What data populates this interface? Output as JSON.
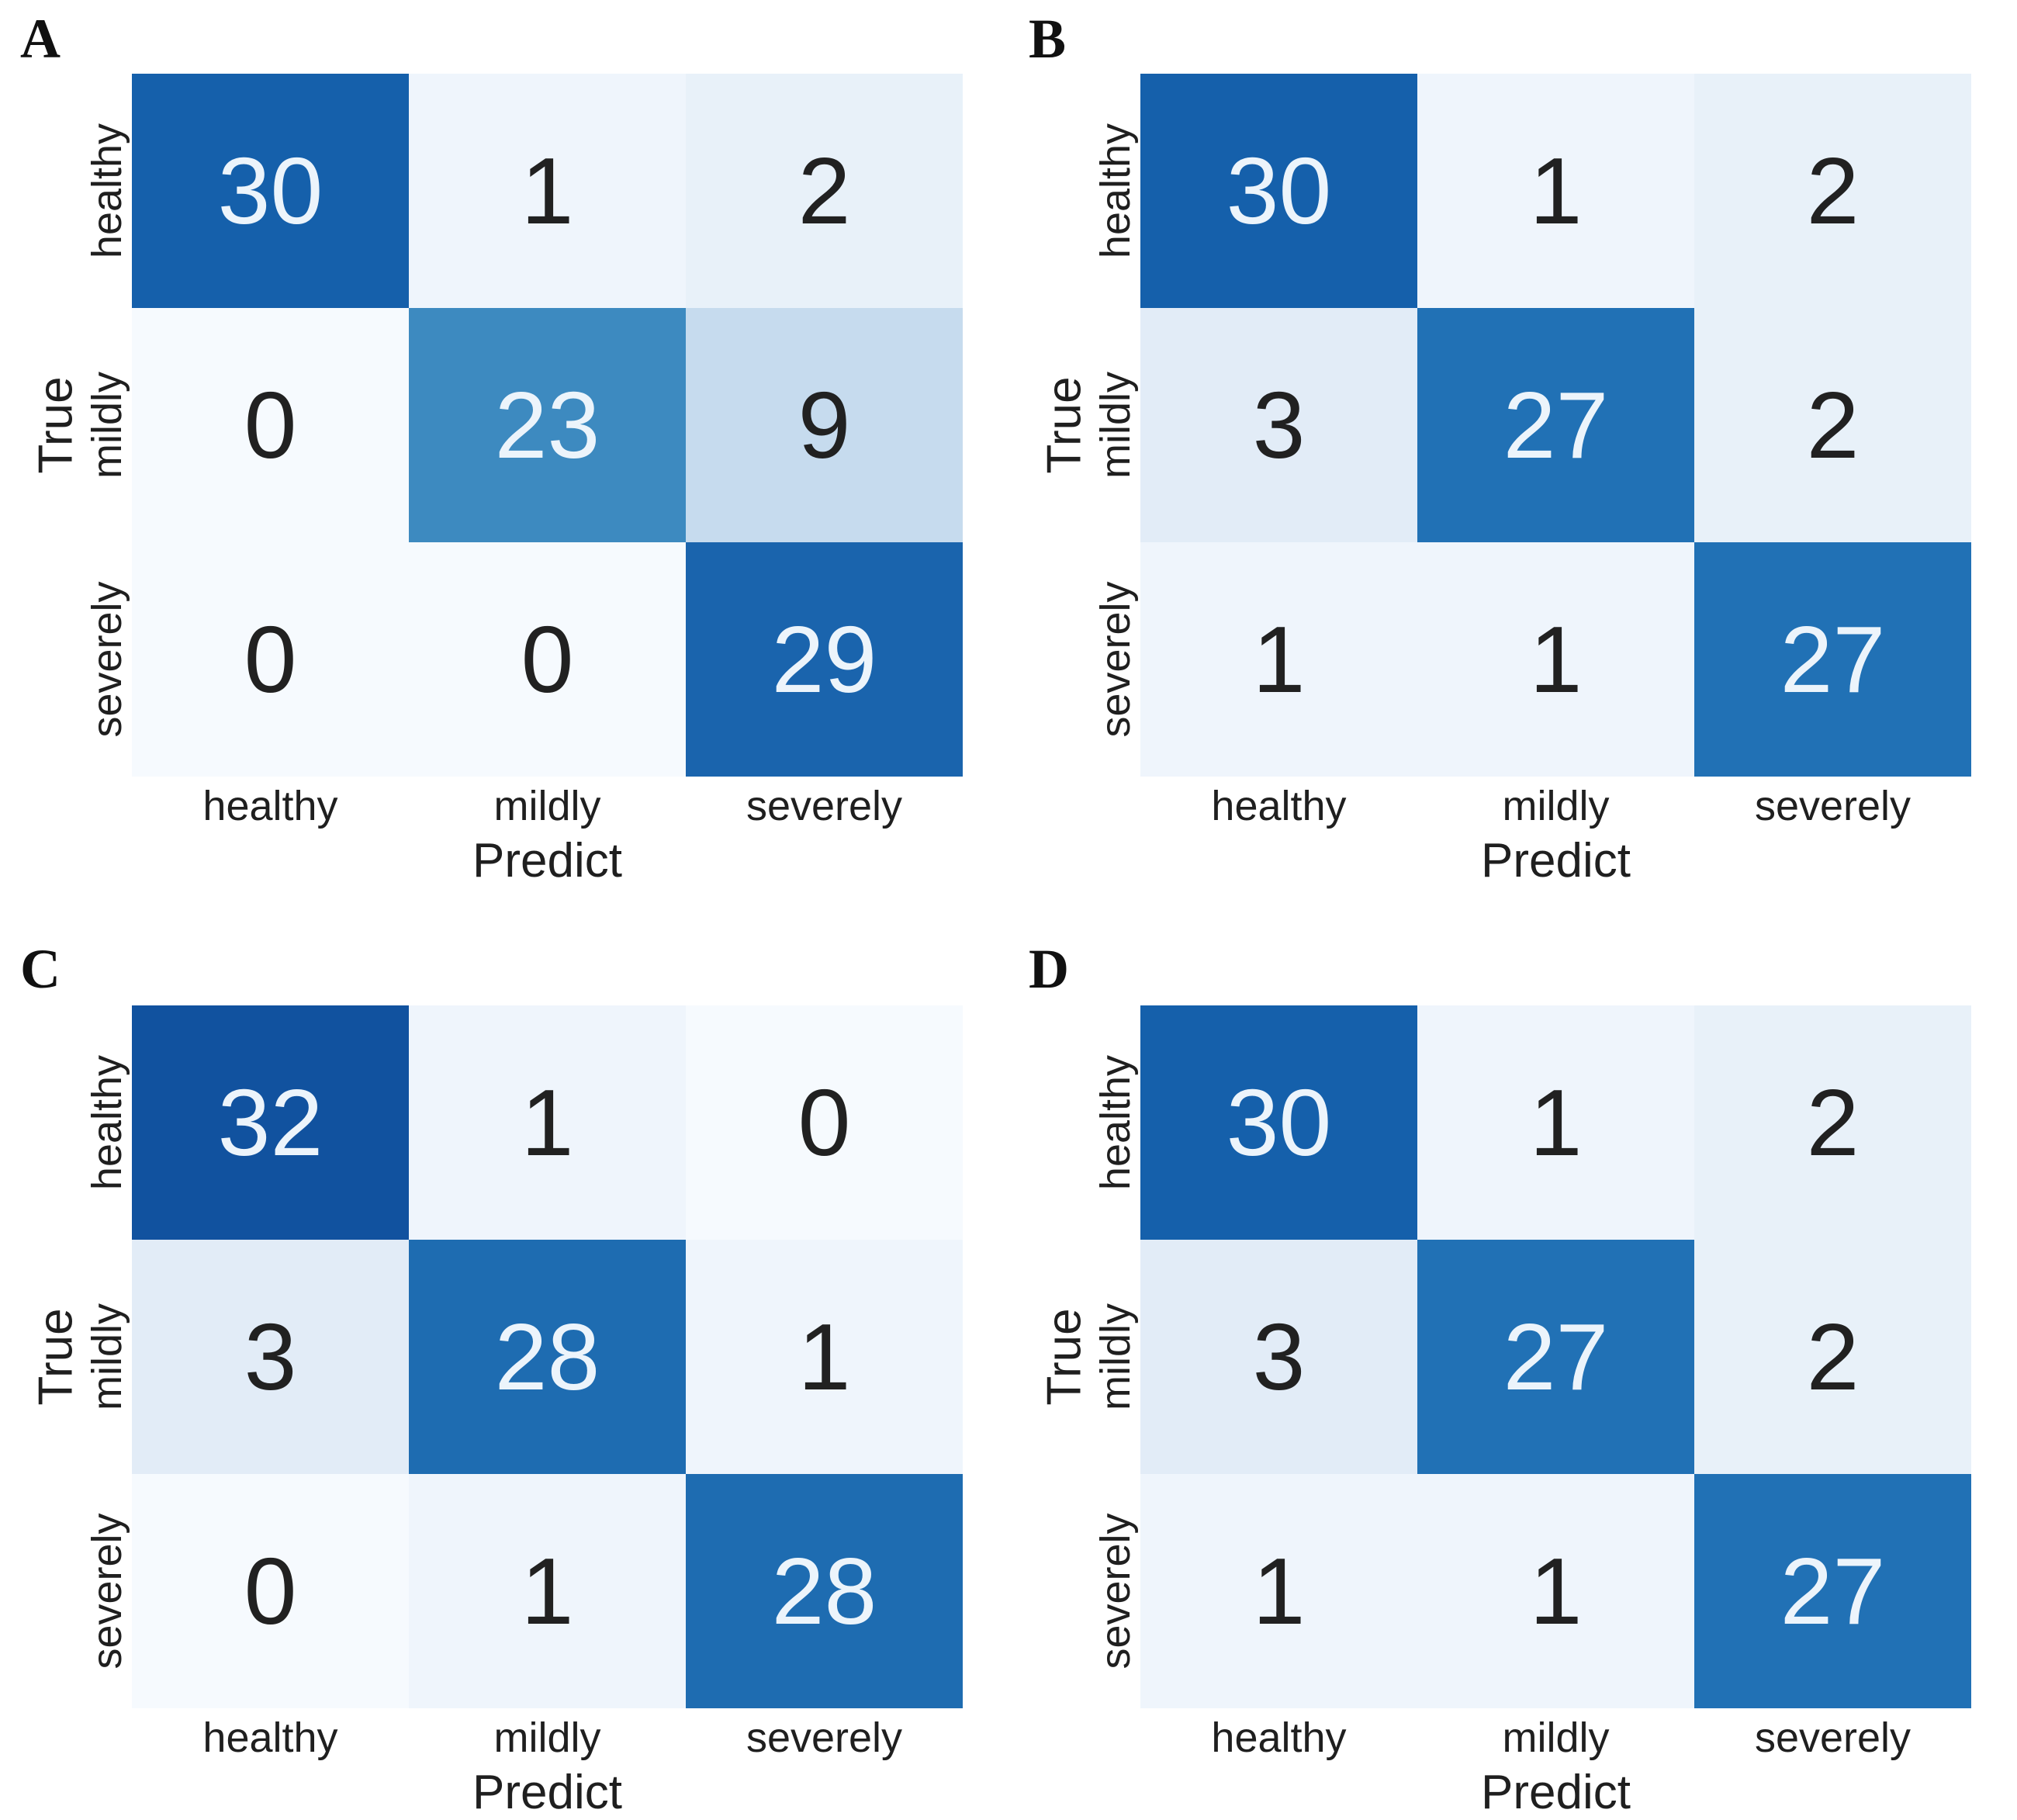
{
  "figure": {
    "background": "#ffffff",
    "x_axis": {
      "label": "Predict",
      "ticks": [
        "healthy",
        "mildly",
        "severely"
      ]
    },
    "y_axis": {
      "label": "True",
      "ticks": [
        "healthy",
        "mildly",
        "severely"
      ]
    },
    "colormap": {
      "name": "Blues",
      "value_colors": {
        "0": "#f6fafe",
        "1": "#eff5fc",
        "2": "#e8f1f9",
        "3": "#e2ecf7",
        "9": "#c6dbee",
        "23": "#3d8ac0",
        "27": "#2171b5",
        "28": "#1e6cb1",
        "29": "#1a64ad",
        "30": "#1560ab",
        "32": "#11529f"
      },
      "light_text": "#ecf4fb",
      "dark_text": "#212121",
      "light_text_min_value": 20
    }
  },
  "chart_data": [
    {
      "type": "heatmap",
      "panel_label": "A",
      "x": [
        "healthy",
        "mildly",
        "severely"
      ],
      "y": [
        "healthy",
        "mildly",
        "severely"
      ],
      "xlabel": "Predict",
      "ylabel": "True",
      "values": [
        [
          30,
          1,
          2
        ],
        [
          0,
          23,
          9
        ],
        [
          0,
          0,
          29
        ]
      ]
    },
    {
      "type": "heatmap",
      "panel_label": "B",
      "x": [
        "healthy",
        "mildly",
        "severely"
      ],
      "y": [
        "healthy",
        "mildly",
        "severely"
      ],
      "xlabel": "Predict",
      "ylabel": "True",
      "values": [
        [
          30,
          1,
          2
        ],
        [
          3,
          27,
          2
        ],
        [
          1,
          1,
          27
        ]
      ]
    },
    {
      "type": "heatmap",
      "panel_label": "C",
      "x": [
        "healthy",
        "mildly",
        "severely"
      ],
      "y": [
        "healthy",
        "mildly",
        "severely"
      ],
      "xlabel": "Predict",
      "ylabel": "True",
      "values": [
        [
          32,
          1,
          0
        ],
        [
          3,
          28,
          1
        ],
        [
          0,
          1,
          28
        ]
      ]
    },
    {
      "type": "heatmap",
      "panel_label": "D",
      "x": [
        "healthy",
        "mildly",
        "severely"
      ],
      "y": [
        "healthy",
        "mildly",
        "severely"
      ],
      "xlabel": "Predict",
      "ylabel": "True",
      "values": [
        [
          30,
          1,
          2
        ],
        [
          3,
          27,
          2
        ],
        [
          1,
          1,
          27
        ]
      ]
    }
  ]
}
